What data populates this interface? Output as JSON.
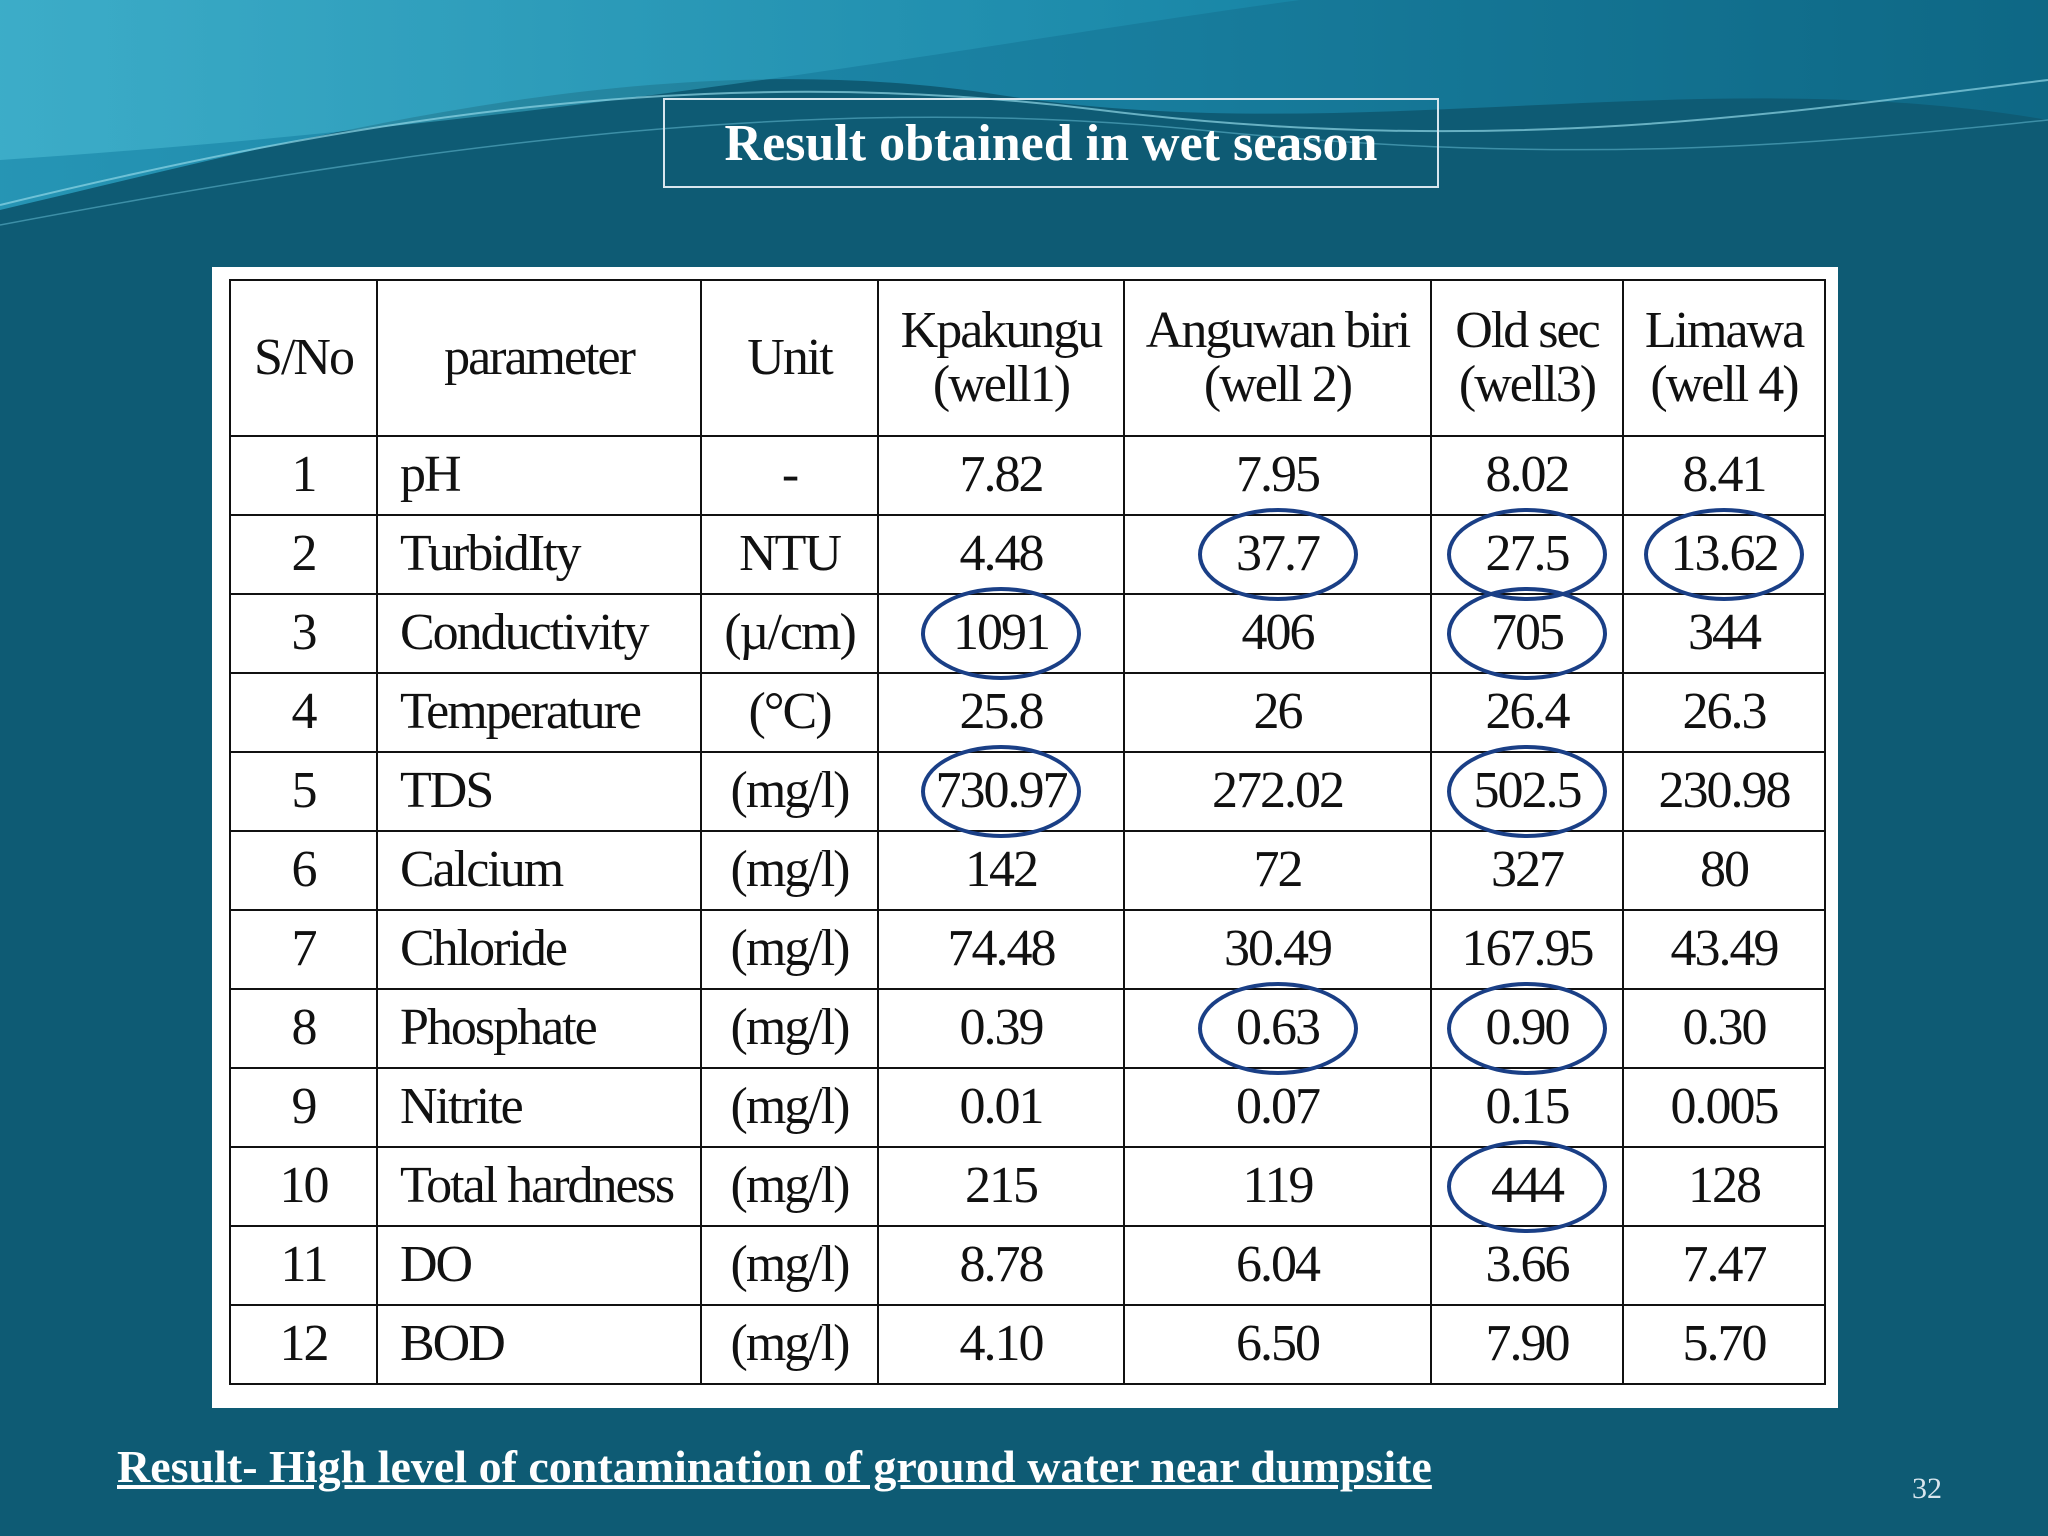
{
  "slide": {
    "title": "Result  obtained in wet season",
    "conclusion": "Result-  High level of contamination of ground water  near dumpsite",
    "page_number": "32"
  },
  "colors": {
    "background": "#0e5b74",
    "circle": "#1a3f86"
  },
  "table": {
    "headers": [
      {
        "line1": "S/No",
        "line2": ""
      },
      {
        "line1": "parameter",
        "line2": ""
      },
      {
        "line1": "Unit",
        "line2": ""
      },
      {
        "line1": "Kpakungu",
        "line2": "(well1)"
      },
      {
        "line1": "Anguwan biri",
        "line2": "(well 2)"
      },
      {
        "line1": "Old sec",
        "line2": "(well3)"
      },
      {
        "line1": "Limawa",
        "line2": "(well 4)"
      }
    ],
    "rows": [
      [
        "1",
        "pH",
        "-",
        "7.82",
        "7.95",
        "8.02",
        "8.41"
      ],
      [
        "2",
        "TurbidIty",
        "NTU",
        "4.48",
        "37.7",
        "27.5",
        "13.62"
      ],
      [
        "3",
        "Conductivity",
        "(µ/cm)",
        "1091",
        "406",
        "705",
        "344"
      ],
      [
        "4",
        "Temperature",
        "(°C)",
        "25.8",
        "26",
        "26.4",
        "26.3"
      ],
      [
        "5",
        "TDS",
        "(mg/l)",
        "730.97",
        "272.02",
        "502.5",
        "230.98"
      ],
      [
        "6",
        "Calcium",
        "(mg/l)",
        "142",
        "72",
        "327",
        "80"
      ],
      [
        "7",
        "Chloride",
        "(mg/l)",
        "74.48",
        "30.49",
        "167.95",
        "43.49"
      ],
      [
        "8",
        "Phosphate",
        "(mg/l)",
        "0.39",
        "0.63",
        "0.90",
        "0.30"
      ],
      [
        "9",
        "Nitrite",
        "(mg/l)",
        "0.01",
        "0.07",
        "0.15",
        "0.005"
      ],
      [
        "10",
        "Total hardness",
        "(mg/l)",
        "215",
        "119",
        "444",
        "128"
      ],
      [
        "11",
        "DO",
        "(mg/l)",
        "8.78",
        "6.04",
        "3.66",
        "7.47"
      ],
      [
        "12",
        "BOD",
        "(mg/l)",
        "4.10",
        "6.50",
        "7.90",
        "5.70"
      ]
    ],
    "circled_cells": [
      {
        "row": 2,
        "col": 4
      },
      {
        "row": 2,
        "col": 5
      },
      {
        "row": 2,
        "col": 6
      },
      {
        "row": 3,
        "col": 3
      },
      {
        "row": 3,
        "col": 5
      },
      {
        "row": 5,
        "col": 3
      },
      {
        "row": 5,
        "col": 5
      },
      {
        "row": 8,
        "col": 4
      },
      {
        "row": 8,
        "col": 5
      },
      {
        "row": 10,
        "col": 5
      }
    ]
  }
}
